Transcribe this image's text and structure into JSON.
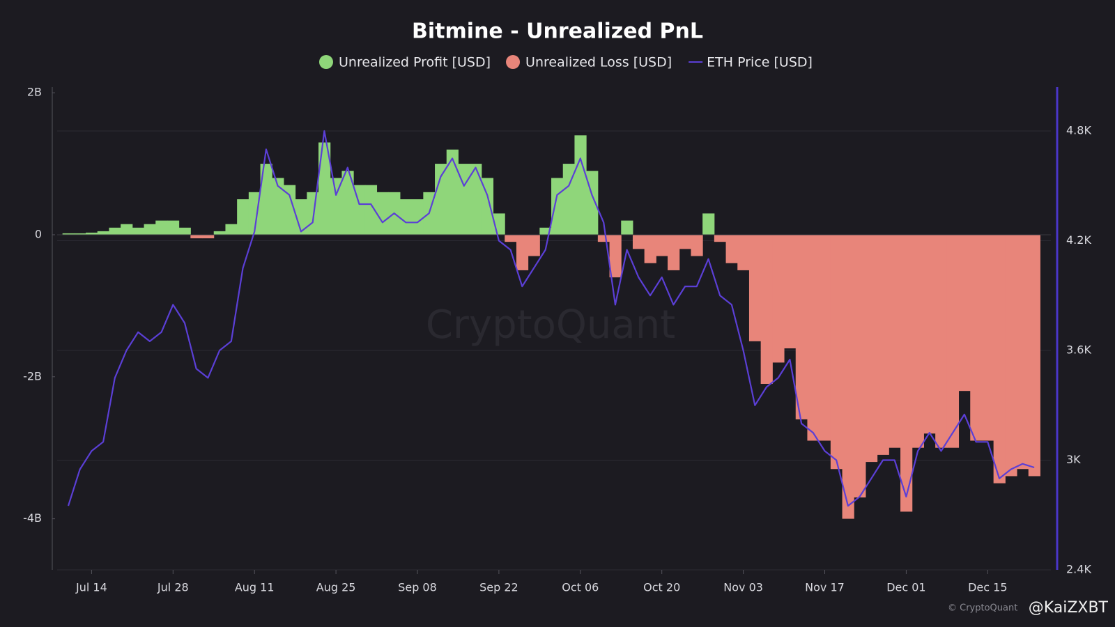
{
  "chart_data": {
    "type": "bar-line",
    "title": "Bitmine - Unrealized PnL",
    "watermark": "CryptoQuant",
    "credits": [
      "© CryptoQuant",
      "@KaiZXBT"
    ],
    "x": [
      "Jul 10",
      "Jul 12",
      "Jul 14",
      "Jul 16",
      "Jul 18",
      "Jul 20",
      "Jul 22",
      "Jul 24",
      "Jul 26",
      "Jul 28",
      "Jul 30",
      "Aug 01",
      "Aug 03",
      "Aug 05",
      "Aug 07",
      "Aug 09",
      "Aug 11",
      "Aug 13",
      "Aug 15",
      "Aug 17",
      "Aug 19",
      "Aug 21",
      "Aug 23",
      "Aug 25",
      "Aug 27",
      "Aug 29",
      "Aug 31",
      "Sep 02",
      "Sep 04",
      "Sep 06",
      "Sep 08",
      "Sep 10",
      "Sep 12",
      "Sep 14",
      "Sep 16",
      "Sep 18",
      "Sep 20",
      "Sep 22",
      "Sep 24",
      "Sep 26",
      "Sep 28",
      "Sep 30",
      "Oct 02",
      "Oct 04",
      "Oct 06",
      "Oct 08",
      "Oct 10",
      "Oct 12",
      "Oct 14",
      "Oct 16",
      "Oct 18",
      "Oct 20",
      "Oct 22",
      "Oct 24",
      "Oct 26",
      "Oct 28",
      "Oct 30",
      "Nov 01",
      "Nov 03",
      "Nov 05",
      "Nov 07",
      "Nov 09",
      "Nov 11",
      "Nov 13",
      "Nov 15",
      "Nov 17",
      "Nov 19",
      "Nov 21",
      "Nov 23",
      "Nov 25",
      "Nov 27",
      "Nov 29",
      "Dec 01",
      "Dec 03",
      "Dec 05",
      "Dec 07",
      "Dec 09",
      "Dec 11",
      "Dec 13",
      "Dec 15",
      "Dec 17",
      "Dec 19",
      "Dec 21",
      "Dec 23"
    ],
    "xticks": [
      "Jul 14",
      "Jul 28",
      "Aug 11",
      "Aug 25",
      "Sep 08",
      "Sep 22",
      "Oct 06",
      "Oct 20",
      "Nov 03",
      "Nov 17",
      "Dec 01",
      "Dec 15"
    ],
    "xtick_labels": [
      "Jul 14",
      "Jul 28",
      "Aug 11",
      "Aug 25",
      "Sep 08",
      "Sep 22",
      "Oct 06",
      "Oct 20",
      "Nov 03",
      "Nov 17",
      "Dec 01",
      "Dec 15"
    ],
    "ylim": [
      -4720000000,
      2080000000
    ],
    "yticks": [
      {
        "value": 2000000000,
        "label": "2B"
      },
      0,
      {
        "value": -2000000000,
        "label": "-2B"
      },
      {
        "value": -4000000000,
        "label": "-4B"
      }
    ],
    "y2lim": [
      2400,
      5040
    ],
    "y2ticks": [
      {
        "value": 4800,
        "label": "4.8K"
      },
      {
        "value": 4200,
        "label": "4.2K"
      },
      {
        "value": 3600,
        "label": "3.6K"
      },
      {
        "value": 3000,
        "label": "3K"
      },
      {
        "value": 2400,
        "label": "2.4K"
      }
    ],
    "grid": true,
    "series": [
      {
        "name": "Unrealized Profit [USD]",
        "color": "#8fd67a",
        "kind": "bar",
        "values": [
          20000000.0,
          20000000.0,
          30000000.0,
          50000000.0,
          100000000.0,
          150000000.0,
          100000000.0,
          150000000.0,
          200000000.0,
          200000000.0,
          100000000.0,
          null,
          null,
          50000000.0,
          150000000.0,
          500000000.0,
          600000000.0,
          1000000000.0,
          800000000.0,
          700000000.0,
          500000000.0,
          600000000.0,
          1300000000.0,
          800000000.0,
          900000000.0,
          700000000.0,
          700000000.0,
          600000000.0,
          600000000.0,
          500000000.0,
          500000000.0,
          600000000.0,
          1000000000.0,
          1200000000.0,
          1000000000.0,
          1000000000.0,
          800000000.0,
          300000000.0,
          null,
          null,
          null,
          100000000.0,
          800000000.0,
          1000000000.0,
          1400000000.0,
          900000000.0,
          null,
          null,
          200000000.0,
          null,
          null,
          null,
          null,
          null,
          null,
          300000000.0,
          null,
          null,
          null,
          null,
          null,
          null,
          null,
          null,
          null,
          null,
          null,
          null,
          null,
          null,
          null,
          null,
          null,
          null,
          null,
          null,
          null,
          null,
          null,
          null,
          null,
          null,
          null,
          null
        ]
      },
      {
        "name": "Unrealized Loss [USD]",
        "color": "#e8857a",
        "kind": "bar",
        "values": [
          null,
          null,
          null,
          null,
          null,
          null,
          null,
          null,
          null,
          null,
          null,
          -50000000.0,
          -50000000.0,
          null,
          null,
          null,
          null,
          null,
          null,
          null,
          null,
          null,
          null,
          null,
          null,
          null,
          null,
          null,
          null,
          null,
          null,
          null,
          null,
          null,
          null,
          null,
          null,
          null,
          -100000000.0,
          -500000000.0,
          -300000000.0,
          null,
          null,
          null,
          null,
          null,
          -100000000.0,
          -600000000.0,
          null,
          -200000000.0,
          -400000000.0,
          -300000000.0,
          -500000000.0,
          -200000000.0,
          -300000000.0,
          null,
          -100000000.0,
          -400000000.0,
          -500000000.0,
          -1500000000.0,
          -2100000000.0,
          -1800000000.0,
          -1600000000.0,
          -2600000000.0,
          -2900000000.0,
          -2900000000.0,
          -3300000000.0,
          -4000000000.0,
          -3700000000.0,
          -3200000000.0,
          -3100000000.0,
          -3000000000.0,
          -3900000000.0,
          -3000000000.0,
          -2800000000.0,
          -3000000000.0,
          -3000000000.0,
          -2200000000.0,
          -2900000000.0,
          -2900000000.0,
          -3500000000.0,
          -3400000000.0,
          -3300000000.0,
          -3400000000.0
        ]
      },
      {
        "name": "ETH Price [USD]",
        "color": "#5b3fd6",
        "kind": "line",
        "axis": "y2",
        "values": [
          2750,
          2950,
          3050,
          3100,
          3450,
          3600,
          3700,
          3650,
          3700,
          3850,
          3750,
          3500,
          3450,
          3600,
          3650,
          4050,
          4250,
          4700,
          4500,
          4450,
          4250,
          4300,
          4800,
          4450,
          4600,
          4400,
          4400,
          4300,
          4350,
          4300,
          4300,
          4350,
          4550,
          4650,
          4500,
          4600,
          4450,
          4200,
          4150,
          3950,
          4050,
          4150,
          4450,
          4500,
          4650,
          4450,
          4300,
          3850,
          4150,
          4000,
          3900,
          4000,
          3850,
          3950,
          3950,
          4100,
          3900,
          3850,
          3600,
          3300,
          3400,
          3450,
          3550,
          3200,
          3150,
          3050,
          3000,
          2750,
          2800,
          2900,
          3000,
          3000,
          2800,
          3050,
          3150,
          3050,
          3150,
          3250,
          3100,
          3100,
          2900,
          2950,
          2980,
          2960
        ]
      }
    ]
  }
}
